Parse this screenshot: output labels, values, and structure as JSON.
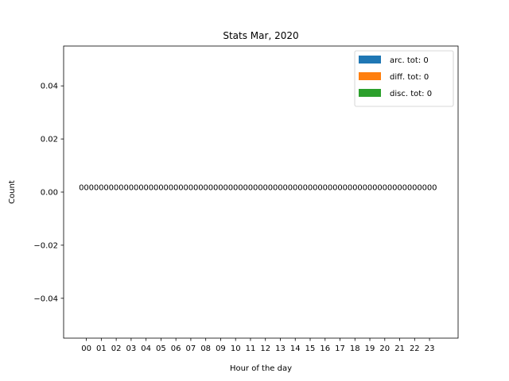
{
  "chart_data": {
    "type": "bar",
    "title": "Stats Mar, 2020",
    "xlabel": "Hour of the day",
    "ylabel": "Count",
    "ylim": [
      -0.055,
      0.055
    ],
    "yticks": [
      -0.04,
      -0.02,
      0.0,
      0.02,
      0.04
    ],
    "ytick_labels": [
      "−0.04",
      "−0.02",
      "0.00",
      "0.02",
      "0.04"
    ],
    "categories": [
      "00",
      "01",
      "02",
      "03",
      "04",
      "05",
      "06",
      "07",
      "08",
      "09",
      "10",
      "11",
      "12",
      "13",
      "14",
      "15",
      "16",
      "17",
      "18",
      "19",
      "20",
      "21",
      "22",
      "23"
    ],
    "series": [
      {
        "name": "arc. tot: 0",
        "color": "#1f77b4",
        "values": [
          0,
          0,
          0,
          0,
          0,
          0,
          0,
          0,
          0,
          0,
          0,
          0,
          0,
          0,
          0,
          0,
          0,
          0,
          0,
          0,
          0,
          0,
          0,
          0
        ]
      },
      {
        "name": "diff. tot: 0",
        "color": "#ff7f0e",
        "values": [
          0,
          0,
          0,
          0,
          0,
          0,
          0,
          0,
          0,
          0,
          0,
          0,
          0,
          0,
          0,
          0,
          0,
          0,
          0,
          0,
          0,
          0,
          0,
          0
        ]
      },
      {
        "name": "disc. tot: 0",
        "color": "#2ca02c",
        "values": [
          0,
          0,
          0,
          0,
          0,
          0,
          0,
          0,
          0,
          0,
          0,
          0,
          0,
          0,
          0,
          0,
          0,
          0,
          0,
          0,
          0,
          0,
          0,
          0
        ]
      }
    ],
    "bar_labels_shown": true,
    "grid": false,
    "legend": "top-right"
  }
}
